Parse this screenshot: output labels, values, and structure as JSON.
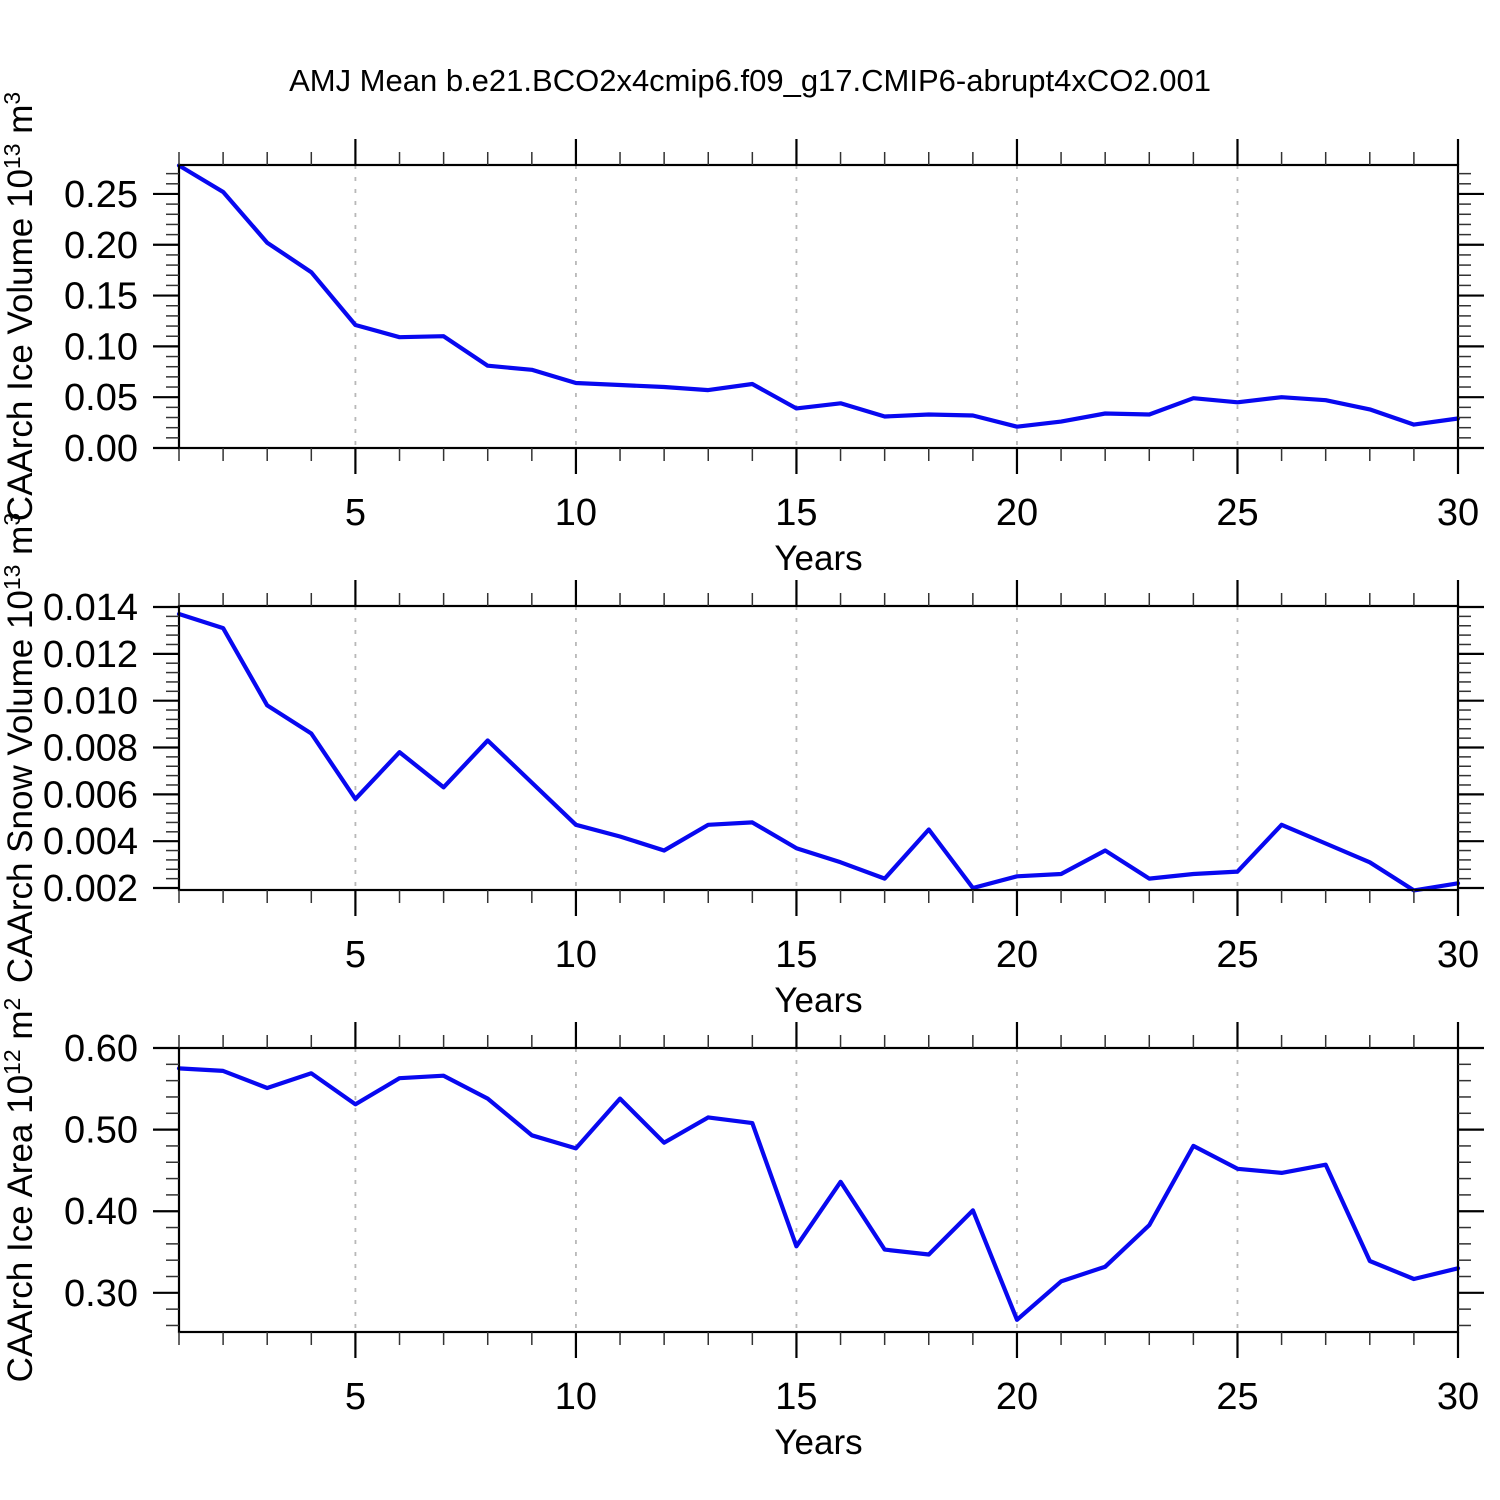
{
  "title": "AMJ Mean b.e21.BCO2x4cmip6.f09_g17.CMIP6-abrupt4xCO2.001",
  "style": {
    "line_color": "#0808f0",
    "grid_color": "#b8b8b8",
    "axis_color": "#000000",
    "minor_tick_color": "#333333",
    "background": "#ffffff"
  },
  "chart_data": [
    {
      "id": "caarch-ice-volume",
      "type": "line",
      "ylabel_text": "CAArch Ice Volume 10^13 m^3",
      "ylabel_parts": [
        {
          "t": "CAArch Ice Volume 10",
          "sup": false
        },
        {
          "t": "13",
          "sup": true
        },
        {
          "t": " m",
          "sup": false
        },
        {
          "t": "3",
          "sup": true
        }
      ],
      "xlabel": "Years",
      "xlim": [
        1,
        30
      ],
      "ylim": [
        0.0,
        0.2785
      ],
      "grid_on": true,
      "grid_x": [
        5,
        10,
        15,
        20,
        25
      ],
      "x_minor_step": 1,
      "y_minor_step": 0.01,
      "xticks": [
        {
          "v": 5,
          "label": "5"
        },
        {
          "v": 10,
          "label": "10"
        },
        {
          "v": 15,
          "label": "15"
        },
        {
          "v": 20,
          "label": "20"
        },
        {
          "v": 25,
          "label": "25"
        },
        {
          "v": 30,
          "label": "30"
        }
      ],
      "yticks": [
        {
          "v": 0.0,
          "label": "0.00"
        },
        {
          "v": 0.05,
          "label": "0.05"
        },
        {
          "v": 0.1,
          "label": "0.10"
        },
        {
          "v": 0.15,
          "label": "0.15"
        },
        {
          "v": 0.2,
          "label": "0.20"
        },
        {
          "v": 0.25,
          "label": "0.25"
        }
      ],
      "x": [
        1,
        2,
        3,
        4,
        5,
        6,
        7,
        8,
        9,
        10,
        11,
        12,
        13,
        14,
        15,
        16,
        17,
        18,
        19,
        20,
        21,
        22,
        23,
        24,
        25,
        26,
        27,
        28,
        29,
        30
      ],
      "values": [
        0.278,
        0.252,
        0.202,
        0.173,
        0.121,
        0.109,
        0.11,
        0.081,
        0.077,
        0.064,
        0.062,
        0.06,
        0.057,
        0.063,
        0.039,
        0.044,
        0.031,
        0.033,
        0.032,
        0.021,
        0.026,
        0.034,
        0.033,
        0.049,
        0.045,
        0.05,
        0.047,
        0.038,
        0.023,
        0.029
      ]
    },
    {
      "id": "caarch-snow-volume",
      "type": "line",
      "ylabel_text": "CAArch Snow Volume 10^13 m^3",
      "ylabel_parts": [
        {
          "t": "CAArch Snow Volume 10",
          "sup": false
        },
        {
          "t": "13",
          "sup": true
        },
        {
          "t": " m",
          "sup": false
        },
        {
          "t": "3",
          "sup": true
        }
      ],
      "xlabel": "Years",
      "xlim": [
        1,
        30
      ],
      "ylim": [
        0.001915,
        0.014043
      ],
      "grid_on": true,
      "grid_x": [
        5,
        10,
        15,
        20,
        25
      ],
      "x_minor_step": 1,
      "y_minor_step": 0.0004,
      "xticks": [
        {
          "v": 5,
          "label": "5"
        },
        {
          "v": 10,
          "label": "10"
        },
        {
          "v": 15,
          "label": "15"
        },
        {
          "v": 20,
          "label": "20"
        },
        {
          "v": 25,
          "label": "25"
        },
        {
          "v": 30,
          "label": "30"
        }
      ],
      "yticks": [
        {
          "v": 0.002,
          "label": "0.002"
        },
        {
          "v": 0.004,
          "label": "0.004"
        },
        {
          "v": 0.006,
          "label": "0.006"
        },
        {
          "v": 0.008,
          "label": "0.008"
        },
        {
          "v": 0.01,
          "label": "0.010"
        },
        {
          "v": 0.012,
          "label": "0.012"
        },
        {
          "v": 0.014,
          "label": "0.014"
        }
      ],
      "x": [
        1,
        2,
        3,
        4,
        5,
        6,
        7,
        8,
        9,
        10,
        11,
        12,
        13,
        14,
        15,
        16,
        17,
        18,
        19,
        20,
        21,
        22,
        23,
        24,
        25,
        26,
        27,
        28,
        29,
        30
      ],
      "values": [
        0.0137,
        0.0131,
        0.0098,
        0.0086,
        0.0058,
        0.0078,
        0.0063,
        0.0083,
        0.0065,
        0.0047,
        0.0042,
        0.0036,
        0.0047,
        0.0048,
        0.0037,
        0.0031,
        0.0024,
        0.0045,
        0.002,
        0.0025,
        0.0026,
        0.0036,
        0.0024,
        0.0026,
        0.0027,
        0.0047,
        0.0039,
        0.0031,
        0.0019,
        0.0022
      ]
    },
    {
      "id": "caarch-ice-area",
      "type": "line",
      "ylabel_text": "CAArch Ice Area 10^12 m^2",
      "ylabel_parts": [
        {
          "t": "CAArch Ice Area 10",
          "sup": false
        },
        {
          "t": "12",
          "sup": true
        },
        {
          "t": " m",
          "sup": false
        },
        {
          "t": "2",
          "sup": true
        }
      ],
      "xlabel": "Years",
      "xlim": [
        1,
        30
      ],
      "ylim": [
        0.252,
        0.6
      ],
      "grid_on": true,
      "grid_x": [
        5,
        10,
        15,
        20,
        25
      ],
      "x_minor_step": 1,
      "y_minor_step": 0.02,
      "xticks": [
        {
          "v": 5,
          "label": "5"
        },
        {
          "v": 10,
          "label": "10"
        },
        {
          "v": 15,
          "label": "15"
        },
        {
          "v": 20,
          "label": "20"
        },
        {
          "v": 25,
          "label": "25"
        },
        {
          "v": 30,
          "label": "30"
        }
      ],
      "yticks": [
        {
          "v": 0.3,
          "label": "0.30"
        },
        {
          "v": 0.4,
          "label": "0.40"
        },
        {
          "v": 0.5,
          "label": "0.50"
        },
        {
          "v": 0.6,
          "label": "0.60"
        }
      ],
      "x": [
        1,
        2,
        3,
        4,
        5,
        6,
        7,
        8,
        9,
        10,
        11,
        12,
        13,
        14,
        15,
        16,
        17,
        18,
        19,
        20,
        21,
        22,
        23,
        24,
        25,
        26,
        27,
        28,
        29,
        30
      ],
      "values": [
        0.575,
        0.572,
        0.551,
        0.569,
        0.531,
        0.563,
        0.566,
        0.538,
        0.493,
        0.477,
        0.538,
        0.484,
        0.515,
        0.508,
        0.357,
        0.436,
        0.353,
        0.347,
        0.401,
        0.267,
        0.314,
        0.332,
        0.383,
        0.48,
        0.452,
        0.447,
        0.457,
        0.339,
        0.317,
        0.33
      ]
    }
  ]
}
